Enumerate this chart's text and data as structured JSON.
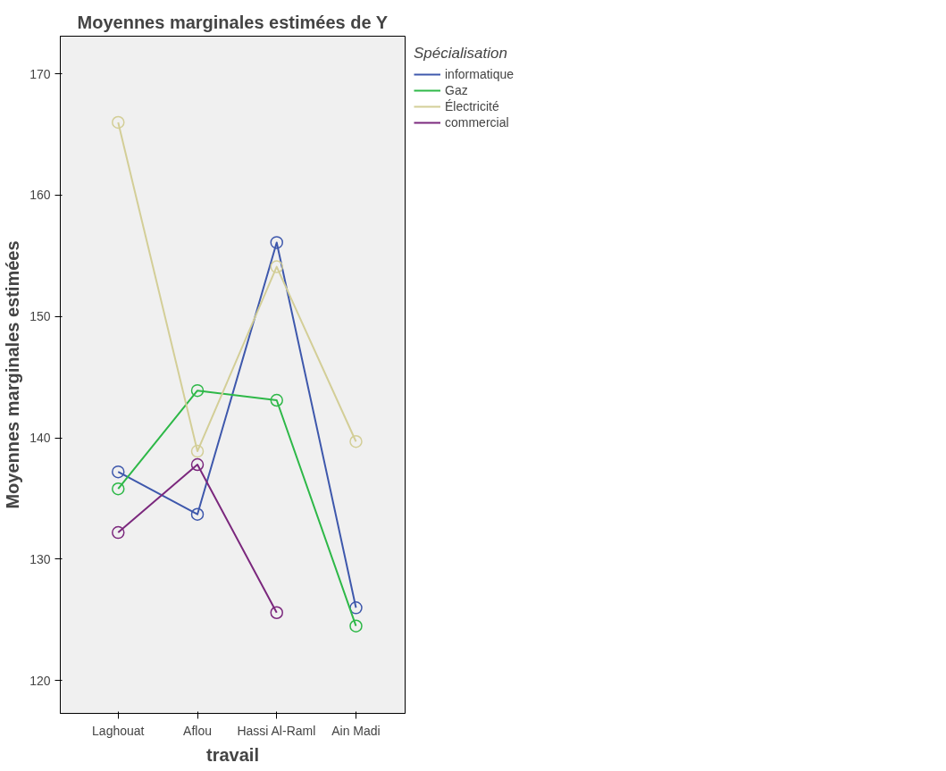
{
  "chart_data": {
    "type": "line",
    "title": "Moyennes marginales estimées de Y",
    "xlabel": "travail",
    "ylabel": "Moyennes marginales estimées",
    "legend_title": "Spécialisation",
    "categories": [
      "Laghouat",
      "Aflou",
      "Hassi Al-Raml",
      "Ain Madi"
    ],
    "series": [
      {
        "name": "informatique",
        "color": "#3e58ac",
        "values": [
          137.2,
          133.7,
          156.1,
          126.0
        ]
      },
      {
        "name": "Gaz",
        "color": "#2eb848",
        "values": [
          135.8,
          143.9,
          143.1,
          124.5
        ]
      },
      {
        "name": "Électricité",
        "color": "#d3ce97",
        "values": [
          166.0,
          138.9,
          154.1,
          139.7
        ]
      },
      {
        "name": "commercial",
        "color": "#7b287d",
        "values": [
          132.2,
          137.8,
          125.6,
          null
        ]
      }
    ],
    "ylim": [
      117.3,
      173.1
    ],
    "yticks": [
      120,
      130,
      140,
      150,
      160,
      170
    ],
    "grid": false,
    "legend": "right",
    "marker": "circle",
    "line_style": "solid"
  }
}
